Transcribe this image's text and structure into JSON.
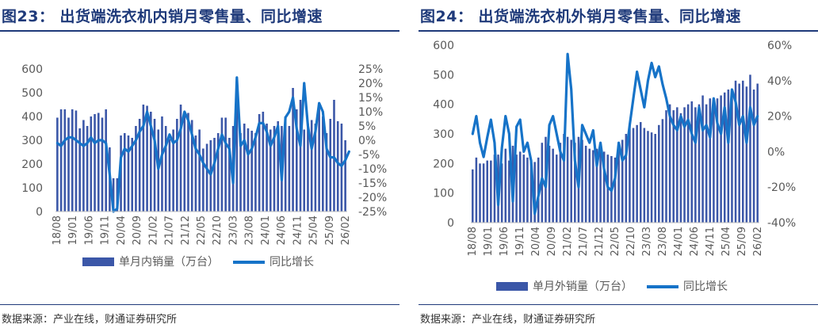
{
  "chart_data": [
    {
      "id": "fig23",
      "type": "bar+line",
      "title": "图23：   出货端洗衣机内销月零售量、同比增速",
      "source": "数据来源：产业在线，财通证券研究所",
      "x_ticks": [
        "18/08",
        "19/01",
        "19/06",
        "19/11",
        "20/04",
        "20/09",
        "21/02",
        "21/07",
        "21/12",
        "22/05",
        "22/10",
        "23/03",
        "23/08",
        "24/01",
        "24/06",
        "24/11",
        "25/04",
        "25/09",
        "26/02"
      ],
      "y_left": {
        "min": 0,
        "max": 600,
        "ticks": [
          "0",
          "100",
          "200",
          "300",
          "400",
          "500",
          "600"
        ]
      },
      "y_right": {
        "min": -25,
        "max": 25,
        "ticks": [
          "-25%",
          "-20%",
          "-15%",
          "-10%",
          "-5%",
          "0%",
          "5%",
          "10%",
          "15%",
          "20%",
          "25%"
        ]
      },
      "legend": {
        "bar_label": "单月内销量（万台）",
        "line_label": "同比增长"
      },
      "series": [
        {
          "name": "单月内销量（万台）",
          "type": "bar",
          "axis": "left",
          "values": [
            395,
            430,
            430,
            395,
            430,
            425,
            350,
            385,
            360,
            400,
            410,
            415,
            395,
            430,
            270,
            140,
            140,
            320,
            330,
            320,
            310,
            360,
            390,
            450,
            445,
            420,
            390,
            345,
            400,
            360,
            305,
            345,
            390,
            450,
            410,
            415,
            385,
            320,
            345,
            265,
            285,
            300,
            310,
            330,
            395,
            395,
            310,
            360,
            520,
            330,
            370,
            350,
            340,
            330,
            410,
            420,
            370,
            345,
            360,
            380,
            360,
            400,
            360,
            520,
            430,
            470,
            345,
            370,
            385,
            370,
            440,
            400,
            330,
            390,
            470,
            380,
            370,
            300
          ]
        },
        {
          "name": "同比增长",
          "type": "line",
          "axis": "right",
          "values": [
            -1,
            -2,
            0,
            1,
            1,
            0,
            -1,
            -2,
            -1,
            1,
            -1,
            0,
            0,
            -1,
            -12,
            -25,
            -24,
            -6,
            -3,
            -4,
            -2,
            0,
            3,
            5,
            10,
            5,
            0,
            -10,
            -5,
            -2,
            2,
            -1,
            0,
            4,
            10,
            7,
            2,
            -3,
            -5,
            -8,
            -10,
            -12,
            -8,
            -3,
            2,
            -1,
            -3,
            -15,
            22,
            -2,
            0,
            -5,
            -3,
            1,
            6,
            6,
            3,
            -2,
            1,
            5,
            -14,
            8,
            10,
            15,
            4,
            -2,
            20,
            5,
            -3,
            3,
            13,
            10,
            -3,
            -6,
            -6,
            -8,
            -9,
            -7,
            -4
          ]
        }
      ]
    },
    {
      "id": "fig24",
      "type": "bar+line",
      "title": "图24：   出货端洗衣机外销月零售量、同比增速",
      "source": "数据来源：产业在线，财通证券研究所",
      "x_ticks": [
        "18/08",
        "19/01",
        "19/06",
        "19/11",
        "20/04",
        "20/09",
        "21/02",
        "21/07",
        "21/12",
        "22/05",
        "22/10",
        "23/03",
        "23/08",
        "24/01",
        "24/06",
        "24/11",
        "25/04",
        "25/09",
        "26/02"
      ],
      "y_left": {
        "min": 0,
        "max": 600,
        "ticks": [
          "0",
          "100",
          "200",
          "300",
          "400",
          "500",
          "600"
        ]
      },
      "y_right": {
        "min": -40,
        "max": 60,
        "ticks": [
          "-40%",
          "-20%",
          "0%",
          "20%",
          "40%",
          "60%"
        ]
      },
      "legend": {
        "bar_label": "单月外销量（万台）",
        "line_label": "同比增长"
      },
      "series": [
        {
          "name": "单月外销量（万台）",
          "type": "bar",
          "axis": "left",
          "values": [
            180,
            220,
            200,
            200,
            210,
            210,
            230,
            230,
            200,
            250,
            210,
            260,
            230,
            240,
            230,
            220,
            210,
            205,
            220,
            270,
            290,
            260,
            250,
            230,
            270,
            300,
            290,
            280,
            270,
            290,
            280,
            260,
            250,
            245,
            250,
            260,
            240,
            230,
            225,
            220,
            260,
            280,
            300,
            330,
            320,
            330,
            340,
            320,
            310,
            305,
            300,
            330,
            350,
            380,
            400,
            380,
            390,
            370,
            390,
            400,
            410,
            390,
            400,
            430,
            400,
            420,
            410,
            420,
            430,
            440,
            450,
            430,
            480,
            470,
            480,
            460,
            500,
            450,
            470
          ]
        },
        {
          "name": "同比增长",
          "type": "line",
          "axis": "right",
          "values": [
            10,
            20,
            5,
            -3,
            8,
            18,
            5,
            -30,
            2,
            20,
            10,
            -28,
            14,
            18,
            0,
            5,
            -5,
            -35,
            -25,
            -15,
            -20,
            15,
            20,
            10,
            0,
            -5,
            55,
            35,
            -5,
            -20,
            15,
            10,
            5,
            12,
            -8,
            5,
            -10,
            -20,
            -22,
            -15,
            5,
            -5,
            -2,
            15,
            30,
            45,
            35,
            25,
            40,
            50,
            42,
            48,
            38,
            30,
            20,
            15,
            12,
            20,
            14,
            18,
            10,
            5,
            25,
            12,
            15,
            8,
            30,
            16,
            10,
            25,
            5,
            35,
            28,
            15,
            20,
            5,
            25,
            15,
            20
          ]
        }
      ]
    }
  ]
}
